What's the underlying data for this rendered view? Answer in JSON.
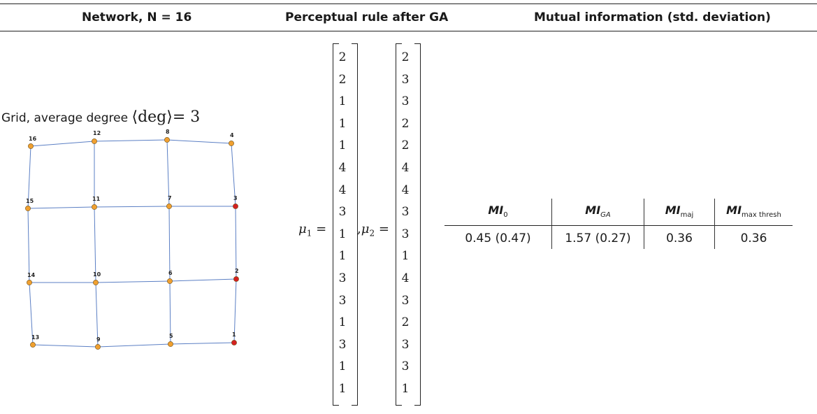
{
  "headers": {
    "network": "Network, N = 16",
    "rule": "Perceptual rule after GA",
    "mi": "Mutual information (std. deviation)"
  },
  "grid_title": {
    "text": "Grid, average degree",
    "deg_word": "deg",
    "equals": "= 3"
  },
  "network": {
    "nodes": [
      {
        "id": "16",
        "color": "orange"
      },
      {
        "id": "12",
        "color": "orange"
      },
      {
        "id": "8",
        "color": "orange"
      },
      {
        "id": "4",
        "color": "orange"
      },
      {
        "id": "15",
        "color": "orange"
      },
      {
        "id": "11",
        "color": "orange"
      },
      {
        "id": "7",
        "color": "orange"
      },
      {
        "id": "3",
        "color": "red"
      },
      {
        "id": "14",
        "color": "orange"
      },
      {
        "id": "10",
        "color": "orange"
      },
      {
        "id": "6",
        "color": "orange"
      },
      {
        "id": "2",
        "color": "red"
      },
      {
        "id": "13",
        "color": "orange"
      },
      {
        "id": "9",
        "color": "orange"
      },
      {
        "id": "5",
        "color": "orange"
      },
      {
        "id": "1",
        "color": "red"
      }
    ],
    "colors": {
      "orange": "#f0a030",
      "red": "#d42020",
      "edge": "#5b7fc4"
    }
  },
  "vectors": {
    "mu1_label": "μ",
    "mu1_sub": "1",
    "mu2_label": "μ",
    "mu2_sub": "2",
    "eq": "=",
    "sep": ",",
    "mu1": [
      "2",
      "2",
      "1",
      "1",
      "1",
      "4",
      "4",
      "3",
      "1",
      "1",
      "3",
      "3",
      "1",
      "3",
      "1",
      "1"
    ],
    "mu2": [
      "2",
      "3",
      "3",
      "2",
      "2",
      "4",
      "4",
      "3",
      "3",
      "1",
      "4",
      "3",
      "2",
      "3",
      "3",
      "1"
    ]
  },
  "mi_table": {
    "cols": [
      {
        "base": "MI",
        "sub": "0",
        "sub_italic": false,
        "value": "0.45 (0.47)"
      },
      {
        "base": "MI",
        "sub": "GA",
        "sub_italic": true,
        "value": "1.57 (0.27)"
      },
      {
        "base": "MI",
        "sub": "maj",
        "sub_italic": false,
        "value": "0.36"
      },
      {
        "base": "MI",
        "sub": "max thresh",
        "sub_italic": false,
        "value": "0.36"
      }
    ]
  }
}
